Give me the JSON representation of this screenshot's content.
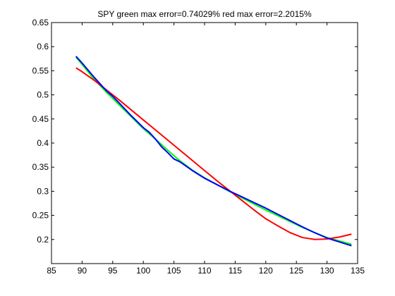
{
  "chart_data": {
    "type": "line",
    "title": "SPY green max error=0.74029% red max error=2.2015%",
    "xlabel": "",
    "ylabel": "",
    "xlim": [
      85,
      135
    ],
    "ylim": [
      0.15,
      0.65
    ],
    "xticks": [
      85,
      90,
      95,
      100,
      105,
      110,
      115,
      120,
      125,
      130,
      135
    ],
    "yticks": [
      0.2,
      0.25,
      0.3,
      0.35,
      0.4,
      0.45,
      0.5,
      0.55,
      0.6,
      0.65
    ],
    "grid": false,
    "legend": "none",
    "series": [
      {
        "color": "#00ff00",
        "x": [
          89,
          90,
          92,
          94,
          96,
          98,
          100,
          102,
          104,
          106,
          108,
          110,
          112,
          114,
          116,
          118,
          120,
          122,
          124,
          126,
          128,
          130,
          132,
          134
        ],
        "y": [
          0.578,
          0.563,
          0.532,
          0.505,
          0.48,
          0.455,
          0.43,
          0.408,
          0.385,
          0.363,
          0.344,
          0.328,
          0.314,
          0.3,
          0.287,
          0.274,
          0.261,
          0.249,
          0.237,
          0.225,
          0.214,
          0.204,
          0.197,
          0.19
        ]
      },
      {
        "color": "#ff0000",
        "x": [
          89,
          90,
          92,
          94,
          96,
          98,
          100,
          102,
          104,
          106,
          108,
          110,
          112,
          114,
          116,
          118,
          120,
          122,
          124,
          126,
          128,
          130,
          132,
          134
        ],
        "y": [
          0.556,
          0.548,
          0.53,
          0.51,
          0.49,
          0.469,
          0.448,
          0.427,
          0.406,
          0.385,
          0.364,
          0.343,
          0.322,
          0.302,
          0.282,
          0.262,
          0.243,
          0.228,
          0.214,
          0.204,
          0.2,
          0.201,
          0.205,
          0.211
        ]
      },
      {
        "color": "#0000ff",
        "x": [
          89,
          90,
          92,
          94,
          95,
          96,
          98,
          100,
          101,
          102,
          103,
          104,
          105,
          106,
          107,
          108,
          110,
          112,
          114,
          116,
          118,
          120,
          122,
          124,
          126,
          128,
          130,
          132,
          134
        ],
        "y": [
          0.58,
          0.566,
          0.536,
          0.508,
          0.497,
          0.484,
          0.457,
          0.432,
          0.422,
          0.408,
          0.392,
          0.38,
          0.367,
          0.361,
          0.352,
          0.343,
          0.327,
          0.314,
          0.301,
          0.289,
          0.277,
          0.265,
          0.252,
          0.239,
          0.226,
          0.214,
          0.203,
          0.195,
          0.187
        ]
      }
    ]
  }
}
